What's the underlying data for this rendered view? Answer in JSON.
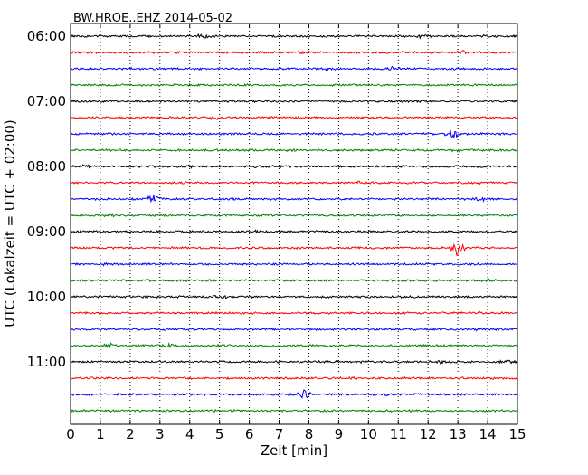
{
  "chart_data": {
    "type": "line",
    "title": "BW.HROE..EHZ 2014-05-02",
    "xlabel": "Zeit  [min]",
    "ylabel": "UTC (Lokalzeit = UTC + 02:00)",
    "xlim": [
      0,
      15
    ],
    "x_ticks": [
      "0",
      "1",
      "2",
      "3",
      "4",
      "5",
      "6",
      "7",
      "8",
      "9",
      "10",
      "11",
      "12",
      "13",
      "14",
      "15"
    ],
    "y_tick_labels": [
      "06:00",
      "07:00",
      "08:00",
      "09:00",
      "10:00",
      "11:00"
    ],
    "grid": "vertical dotted lines at each minute",
    "colors": [
      "#000000",
      "#ff0000",
      "#0000ff",
      "#008000"
    ],
    "series": [
      {
        "start": "06:00",
        "color": "#000000",
        "events": [
          {
            "x": 4.5,
            "amp": 0.4
          },
          {
            "x": 11.8,
            "amp": 0.4
          },
          {
            "x": 13.8,
            "amp": 0.3
          }
        ]
      },
      {
        "start": "06:15",
        "color": "#ff0000",
        "events": [
          {
            "x": 7.8,
            "amp": 0.3
          },
          {
            "x": 13.1,
            "amp": 0.3
          }
        ]
      },
      {
        "start": "06:30",
        "color": "#0000ff",
        "events": [
          {
            "x": 8.7,
            "amp": 0.3
          },
          {
            "x": 10.8,
            "amp": 0.3
          }
        ]
      },
      {
        "start": "06:45",
        "color": "#008000",
        "events": [
          {
            "x": 6.9,
            "amp": 0.25
          }
        ]
      },
      {
        "start": "07:00",
        "color": "#000000",
        "events": [
          {
            "x": 11.6,
            "amp": 0.3
          }
        ]
      },
      {
        "start": "07:15",
        "color": "#ff0000",
        "events": [
          {
            "x": 4.8,
            "amp": 0.3
          }
        ]
      },
      {
        "start": "07:30",
        "color": "#0000ff",
        "events": [
          {
            "x": 12.8,
            "amp": 0.8
          }
        ]
      },
      {
        "start": "07:45",
        "color": "#008000",
        "events": [
          {
            "x": 7.4,
            "amp": 0.3
          },
          {
            "x": 13.0,
            "amp": 0.25
          }
        ]
      },
      {
        "start": "08:00",
        "color": "#000000",
        "events": [
          {
            "x": 0.6,
            "amp": 0.4
          },
          {
            "x": 4.2,
            "amp": 0.3
          },
          {
            "x": 6.3,
            "amp": 0.3
          }
        ]
      },
      {
        "start": "08:15",
        "color": "#ff0000",
        "events": [
          {
            "x": 9.7,
            "amp": 0.3
          }
        ]
      },
      {
        "start": "08:30",
        "color": "#0000ff",
        "events": [
          {
            "x": 2.8,
            "amp": 0.7
          },
          {
            "x": 13.8,
            "amp": 0.3
          }
        ]
      },
      {
        "start": "08:45",
        "color": "#008000",
        "events": [
          {
            "x": 1.4,
            "amp": 0.25
          }
        ]
      },
      {
        "start": "09:00",
        "color": "#000000",
        "events": [
          {
            "x": 6.3,
            "amp": 0.35
          }
        ]
      },
      {
        "start": "09:15",
        "color": "#ff0000",
        "events": [
          {
            "x": 13.0,
            "amp": 1.4
          }
        ]
      },
      {
        "start": "09:30",
        "color": "#0000ff",
        "events": [
          {
            "x": 1.2,
            "amp": 0.25
          }
        ]
      },
      {
        "start": "09:45",
        "color": "#008000",
        "events": [
          {
            "x": 14.0,
            "amp": 0.25
          }
        ]
      },
      {
        "start": "10:00",
        "color": "#000000",
        "events": [
          {
            "x": 5.0,
            "amp": 0.45
          },
          {
            "x": 8.6,
            "amp": 0.3
          }
        ]
      },
      {
        "start": "10:15",
        "color": "#ff0000",
        "events": [
          {
            "x": 13.5,
            "amp": 0.25
          }
        ]
      },
      {
        "start": "10:30",
        "color": "#0000ff",
        "events": [
          {
            "x": 13.6,
            "amp": 0.25
          }
        ]
      },
      {
        "start": "10:45",
        "color": "#008000",
        "events": [
          {
            "x": 1.3,
            "amp": 0.4
          },
          {
            "x": 3.2,
            "amp": 0.4
          }
        ]
      },
      {
        "start": "11:00",
        "color": "#000000",
        "events": [
          {
            "x": 12.5,
            "amp": 0.35
          },
          {
            "x": 14.7,
            "amp": 0.3
          }
        ]
      },
      {
        "start": "11:15",
        "color": "#ff0000",
        "events": [
          {
            "x": 6.2,
            "amp": 0.25
          }
        ]
      },
      {
        "start": "11:30",
        "color": "#0000ff",
        "events": [
          {
            "x": 7.8,
            "amp": 1.0
          },
          {
            "x": 10.5,
            "amp": 0.3
          }
        ]
      },
      {
        "start": "11:45",
        "color": "#008000",
        "events": [
          {
            "x": 4.7,
            "amp": 0.2
          }
        ]
      }
    ]
  }
}
